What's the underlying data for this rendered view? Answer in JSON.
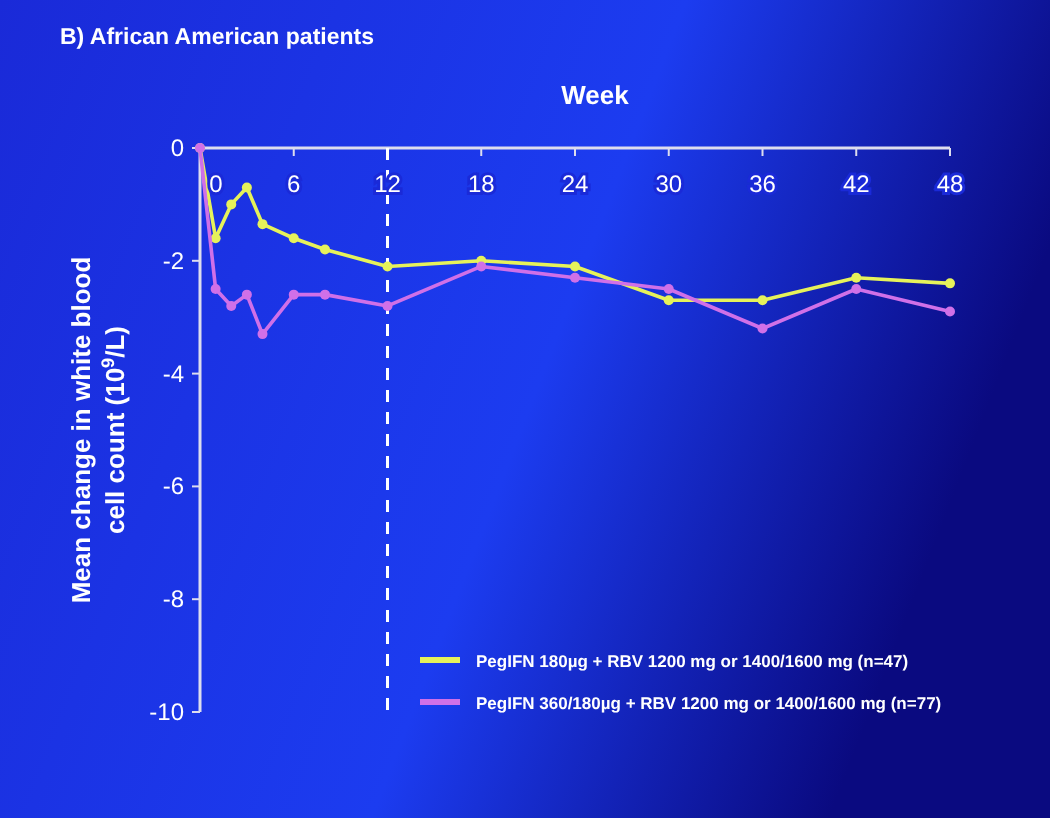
{
  "chart_data": {
    "type": "line",
    "title": "B) African American patients",
    "xlabel": "Week",
    "ylabel": "Mean change in white blood cell count (10$^{9}$/L)",
    "xlim": [
      0,
      48
    ],
    "xticks": [
      0,
      6,
      12,
      18,
      24,
      30,
      36,
      42,
      48
    ],
    "ylim": [
      -10,
      0
    ],
    "yticks": [
      -10,
      -8,
      -6,
      -4,
      -2,
      0
    ],
    "series": [
      {
        "name": "PegIFN 180µg + RBV 1200 mg or 1400/1600 mg (n=47)",
        "color": "#e6f25a",
        "x": [
          0,
          1,
          2,
          3,
          4,
          6,
          8,
          12,
          18,
          24,
          30,
          36,
          42,
          48
        ],
        "values": [
          0,
          -1.6,
          -1.0,
          -0.7,
          -1.35,
          -1.6,
          -1.8,
          -2.1,
          -2.0,
          -2.1,
          -2.7,
          -2.7,
          -2.3,
          -2.4
        ]
      },
      {
        "name": "PegIFN 360/180µg + RBV 1200 mg or 1400/1600 mg (n=77)",
        "color": "#d070e8",
        "x": [
          0,
          1,
          2,
          3,
          4,
          6,
          8,
          12,
          18,
          24,
          30,
          36,
          42,
          48
        ],
        "values": [
          0,
          -2.5,
          -2.8,
          -2.6,
          -3.3,
          -2.6,
          -2.6,
          -2.8,
          -2.1,
          -2.3,
          -2.5,
          -3.2,
          -2.5,
          -2.9
        ]
      }
    ],
    "ref_lines": [
      {
        "axis": "x",
        "value": 12,
        "color": "#ffffff",
        "line_style": "dashed"
      }
    ],
    "marker": "circle",
    "legend": "bottom right",
    "grid": false
  }
}
